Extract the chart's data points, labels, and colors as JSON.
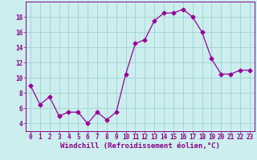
{
  "x": [
    0,
    1,
    2,
    3,
    4,
    5,
    6,
    7,
    8,
    9,
    10,
    11,
    12,
    13,
    14,
    15,
    16,
    17,
    18,
    19,
    20,
    21,
    22,
    23
  ],
  "y": [
    9,
    6.5,
    7.5,
    5,
    5.5,
    5.5,
    4,
    5.5,
    4.5,
    5.5,
    10.5,
    14.5,
    15,
    17.5,
    18.5,
    18.5,
    19,
    18,
    16,
    12.5,
    10.5,
    10.5,
    11,
    11
  ],
  "line_color": "#990099",
  "marker": "D",
  "marker_size": 2.5,
  "bg_color": "#cceeee",
  "grid_color": "#99cccc",
  "xlabel": "Windchill (Refroidissement éolien,°C)",
  "xlim": [
    -0.5,
    23.5
  ],
  "ylim": [
    3,
    20
  ],
  "yticks": [
    4,
    6,
    8,
    10,
    12,
    14,
    16,
    18
  ],
  "xticks": [
    0,
    1,
    2,
    3,
    4,
    5,
    6,
    7,
    8,
    9,
    10,
    11,
    12,
    13,
    14,
    15,
    16,
    17,
    18,
    19,
    20,
    21,
    22,
    23
  ],
  "tick_label_fontsize": 5.5,
  "xlabel_fontsize": 6.5,
  "label_color": "#880088"
}
